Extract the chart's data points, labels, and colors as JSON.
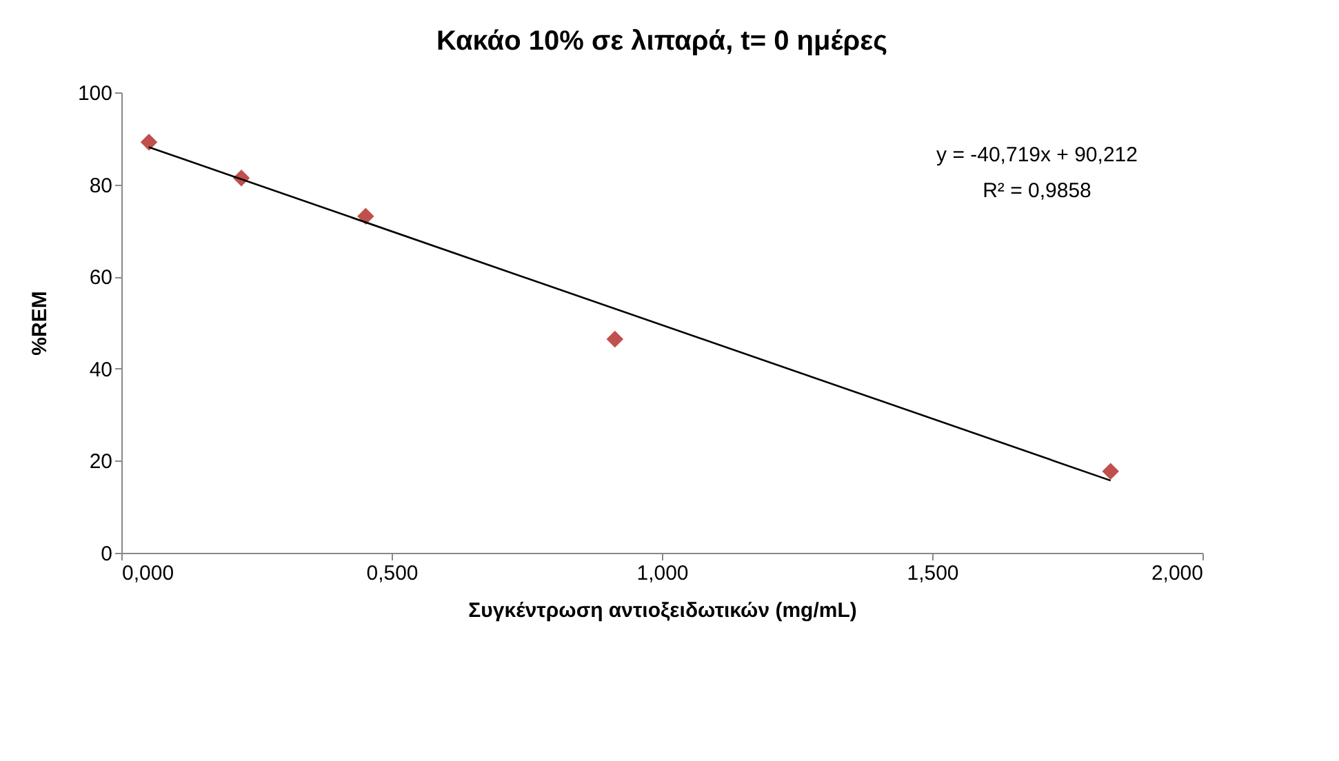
{
  "chart_data": {
    "type": "scatter",
    "title": "Κακάο 10% σε λιπαρά, t= 0 ημέρες",
    "xlabel": "Συγκέντρωση αντιοξειδωτικών (mg/mL)",
    "ylabel": "%REM",
    "xlim": [
      0,
      2
    ],
    "xticks": [
      {
        "value": 0,
        "label": "0,000"
      },
      {
        "value": 0.5,
        "label": "0,500"
      },
      {
        "value": 1,
        "label": "1,000"
      },
      {
        "value": 1.5,
        "label": "1,500"
      },
      {
        "value": 2,
        "label": "2,000"
      }
    ],
    "ylim": [
      0,
      100
    ],
    "yticks": [
      0,
      20,
      40,
      60,
      80,
      100
    ],
    "grid": false,
    "annotations": [
      "y = -40,719x + 90,212",
      "R² = 0,9858"
    ],
    "series": [
      {
        "type": "scatter",
        "color": "#c0504d",
        "marker": "diamond",
        "x": [
          0.051,
          0.222,
          0.452,
          0.913,
          1.83
        ],
        "values": [
          89.2,
          81.4,
          73.1,
          46.4,
          17.7
        ]
      },
      {
        "type": "line",
        "color": "#000000",
        "line_style": "solid",
        "x": [
          0.051,
          1.83
        ],
        "values": [
          88.1,
          15.7
        ]
      }
    ]
  }
}
